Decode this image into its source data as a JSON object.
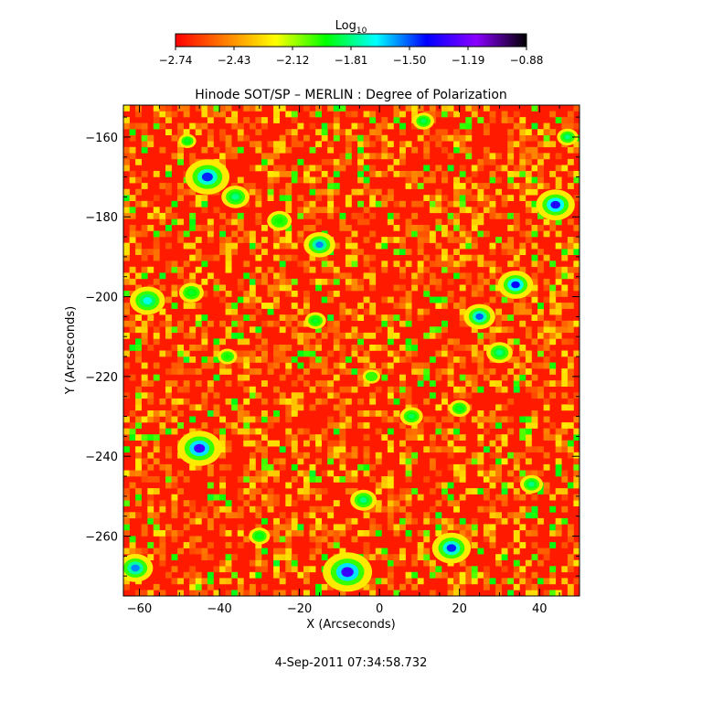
{
  "chart_data": {
    "type": "heatmap",
    "title": "Hinode SOT/SP – MERLIN : Degree of Polarization",
    "xlabel": "X (Arcseconds)",
    "ylabel": "Y (Arcseconds)",
    "xlim": [
      -64,
      50
    ],
    "ylim": [
      -275,
      -152
    ],
    "x_ticks": [
      -60,
      -40,
      -20,
      0,
      20,
      40
    ],
    "y_ticks": [
      -160,
      -180,
      -200,
      -220,
      -240,
      -260
    ],
    "x_tick_labels": [
      "−60",
      "−40",
      "−20",
      "0",
      "20",
      "40"
    ],
    "y_tick_labels": [
      "−160",
      "−180",
      "−200",
      "−220",
      "−240",
      "−260"
    ],
    "colorbar": {
      "label_main": "Log",
      "label_sub": "10",
      "range": [
        -2.74,
        -0.88
      ],
      "ticks": [
        -2.74,
        -2.43,
        -2.12,
        -1.81,
        -1.5,
        -1.19,
        -0.88
      ],
      "tick_labels": [
        "−2.74",
        "−2.43",
        "−2.12",
        "−1.81",
        "−1.50",
        "−1.19",
        "−0.88"
      ],
      "colormap": [
        "#ff0000",
        "#ff7f00",
        "#ffff00",
        "#00ff00",
        "#00ffff",
        "#0000ff",
        "#8a00ff",
        "#000000"
      ]
    },
    "background_value": -2.6,
    "features": [
      {
        "x": -43,
        "y": -170,
        "r": 2.5,
        "v": -1.45
      },
      {
        "x": -36,
        "y": -175,
        "r": 1.6,
        "v": -1.8
      },
      {
        "x": -15,
        "y": -187,
        "r": 1.8,
        "v": -1.55
      },
      {
        "x": -25,
        "y": -181,
        "r": 1.4,
        "v": -1.95
      },
      {
        "x": 11,
        "y": -156,
        "r": 1.2,
        "v": -1.85
      },
      {
        "x": -48,
        "y": -161,
        "r": 1.0,
        "v": -1.9
      },
      {
        "x": 44,
        "y": -177,
        "r": 2.2,
        "v": -1.35
      },
      {
        "x": 34,
        "y": -197,
        "r": 2.0,
        "v": -1.4
      },
      {
        "x": 25,
        "y": -205,
        "r": 1.8,
        "v": -1.5
      },
      {
        "x": -58,
        "y": -201,
        "r": 2.0,
        "v": -1.7
      },
      {
        "x": -47,
        "y": -199,
        "r": 1.4,
        "v": -1.9
      },
      {
        "x": -16,
        "y": -206,
        "r": 1.2,
        "v": -1.9
      },
      {
        "x": 30,
        "y": -214,
        "r": 1.5,
        "v": -1.8
      },
      {
        "x": -45,
        "y": -238,
        "r": 2.5,
        "v": -1.3
      },
      {
        "x": -8,
        "y": -269,
        "r": 2.8,
        "v": -1.3
      },
      {
        "x": 18,
        "y": -263,
        "r": 2.2,
        "v": -1.45
      },
      {
        "x": -61,
        "y": -268,
        "r": 2.0,
        "v": -1.55
      },
      {
        "x": -4,
        "y": -251,
        "r": 1.5,
        "v": -1.8
      },
      {
        "x": 8,
        "y": -230,
        "r": 1.3,
        "v": -1.85
      },
      {
        "x": 38,
        "y": -247,
        "r": 1.3,
        "v": -1.8
      },
      {
        "x": -30,
        "y": -260,
        "r": 1.2,
        "v": -1.9
      },
      {
        "x": 20,
        "y": -228,
        "r": 1.2,
        "v": -1.9
      },
      {
        "x": -38,
        "y": -215,
        "r": 1.1,
        "v": -1.95
      },
      {
        "x": 47,
        "y": -160,
        "r": 1.2,
        "v": -1.8
      },
      {
        "x": -2,
        "y": -220,
        "r": 1.0,
        "v": -2.0
      }
    ]
  },
  "footer": {
    "timestamp": "4-Sep-2011 07:34:58.732"
  }
}
